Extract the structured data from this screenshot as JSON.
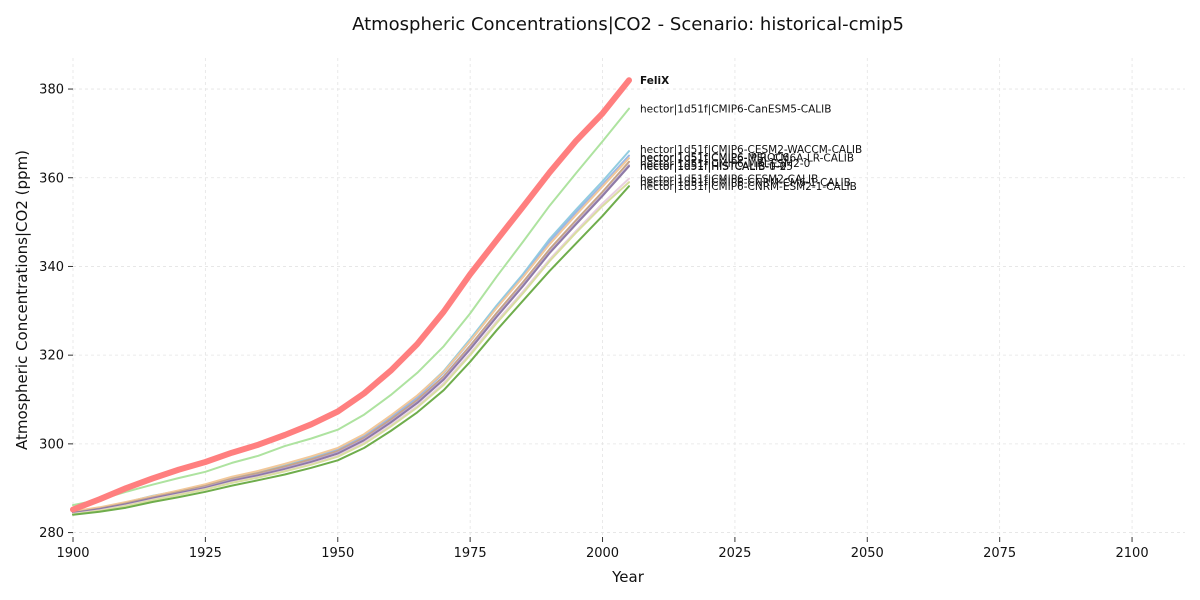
{
  "chart_data": {
    "type": "line",
    "title": "Atmospheric Concentrations|CO2 - Scenario: historical-cmip5",
    "xlabel": "Year",
    "ylabel": "Atmospheric Concentrations|CO2 (ppm)",
    "xlim": [
      1900,
      2110
    ],
    "ylim": [
      279,
      387
    ],
    "xticks": [
      1900,
      1925,
      1950,
      1975,
      2000,
      2025,
      2050,
      2075,
      2100
    ],
    "yticks": [
      280,
      300,
      320,
      340,
      360,
      380
    ],
    "grid": true,
    "legend": "end-of-line labels",
    "x": [
      1900,
      1905,
      1910,
      1915,
      1920,
      1925,
      1930,
      1935,
      1940,
      1945,
      1950,
      1955,
      1960,
      1965,
      1970,
      1975,
      1980,
      1985,
      1990,
      1995,
      2000,
      2005
    ],
    "series": [
      {
        "name": "FeliX",
        "color": "#ff7f7f",
        "width": 6,
        "bold": true,
        "values": [
          285.2,
          287.5,
          290.0,
          292.2,
          294.2,
          295.9,
          298.0,
          299.8,
          302.0,
          304.4,
          307.3,
          311.4,
          316.5,
          322.5,
          329.8,
          338.2,
          345.9,
          353.5,
          361.2,
          368.3,
          374.5,
          382.0
        ]
      },
      {
        "name": "hector|1d51f|CMIP6-CanESM5-CALIB",
        "color": "#aee3a0",
        "width": 2,
        "values": [
          286.2,
          287.4,
          289.2,
          290.8,
          292.3,
          293.7,
          295.7,
          297.3,
          299.5,
          301.2,
          303.2,
          306.6,
          311.0,
          316.0,
          322.0,
          329.4,
          337.7,
          345.6,
          353.7,
          361.0,
          368.2,
          375.6
        ]
      },
      {
        "name": "hector|1d51f|CMIP6-CESM2-WACCM-CALIB",
        "color": "#92cce0",
        "width": 2,
        "values": [
          284.7,
          285.6,
          286.8,
          288.3,
          289.4,
          290.7,
          292.4,
          293.6,
          295.1,
          296.8,
          298.8,
          302.0,
          306.2,
          310.8,
          316.4,
          323.6,
          331.2,
          338.3,
          346.2,
          352.8,
          359.2,
          366.0
        ]
      },
      {
        "name": "hector|1d51f|CMIP6-IPSL-CM6A-LR-CALIB",
        "color": "#9bb7e6",
        "width": 2,
        "values": [
          284.6,
          285.5,
          286.7,
          288.1,
          289.2,
          290.5,
          292.2,
          293.4,
          294.9,
          296.6,
          298.6,
          301.7,
          305.9,
          310.4,
          316.0,
          323.1,
          330.7,
          337.8,
          345.6,
          352.2,
          358.5,
          365.0
        ]
      },
      {
        "name": "hector|1d51f|CMIP6-MIROC6",
        "color": "#f2c89a",
        "width": 2,
        "values": [
          284.8,
          285.7,
          286.9,
          288.2,
          289.5,
          290.9,
          292.6,
          293.9,
          295.5,
          297.2,
          299.1,
          302.2,
          306.4,
          310.9,
          316.2,
          323.2,
          330.6,
          337.6,
          345.0,
          351.6,
          358.0,
          364.4
        ]
      },
      {
        "name": "hector|1d51f|CMIP6-MRI-ESM2-0",
        "color": "#c4a48a",
        "width": 2,
        "values": [
          284.5,
          285.4,
          286.6,
          287.9,
          289.2,
          290.5,
          292.1,
          293.4,
          294.9,
          296.5,
          298.4,
          301.4,
          305.5,
          309.9,
          315.2,
          322.1,
          329.5,
          336.5,
          343.9,
          350.4,
          356.8,
          363.6
        ]
      },
      {
        "name": "hector|1d51f|HISTCALIB-1-0",
        "color": "#b9a6d6",
        "width": 2,
        "values": [
          284.3,
          285.2,
          286.3,
          287.7,
          288.9,
          290.2,
          291.8,
          293.0,
          294.5,
          296.1,
          298.0,
          301.0,
          305.0,
          309.4,
          314.7,
          321.5,
          328.8,
          335.8,
          343.2,
          349.7,
          356.1,
          362.8
        ]
      },
      {
        "name": "hector|1d51f|HISTCALIB-0-25",
        "color": "#8e7aa6",
        "width": 2,
        "values": [
          284.4,
          285.3,
          286.4,
          287.7,
          288.9,
          290.1,
          291.7,
          292.9,
          294.3,
          295.9,
          297.8,
          300.8,
          304.8,
          309.2,
          314.5,
          321.3,
          328.6,
          335.6,
          343.0,
          349.5,
          355.9,
          362.6
        ]
      },
      {
        "name": "hector|1d51f|CMIP6-CESM2-CALIB",
        "color": "#e8cfe0",
        "width": 2,
        "values": [
          284.2,
          285.0,
          286.1,
          287.4,
          288.6,
          289.8,
          291.3,
          292.5,
          293.9,
          295.5,
          297.3,
          300.3,
          304.2,
          308.5,
          313.7,
          320.4,
          327.6,
          334.4,
          341.6,
          348.0,
          354.2,
          359.8
        ]
      },
      {
        "name": "hector|1d51f|CMIP6-CNRM-CM6-1-CALIB",
        "color": "#d9dea0",
        "width": 2,
        "values": [
          284.1,
          284.9,
          286.0,
          287.3,
          288.5,
          289.7,
          291.2,
          292.4,
          293.8,
          295.3,
          297.1,
          300.0,
          303.9,
          308.2,
          313.3,
          320.0,
          327.2,
          334.0,
          341.2,
          347.6,
          353.6,
          359.0
        ]
      },
      {
        "name": "hector|1d51f|CMIP6-CNRM-ESM2-1-CALIB",
        "color": "#6fad4c",
        "width": 2,
        "values": [
          284.0,
          284.7,
          285.6,
          286.9,
          288.0,
          289.2,
          290.6,
          291.8,
          293.1,
          294.6,
          296.3,
          299.1,
          302.9,
          307.1,
          312.1,
          318.5,
          325.6,
          332.3,
          339.0,
          345.2,
          351.4,
          358.1
        ]
      }
    ],
    "label_offsets_y": [
      0,
      0,
      -2,
      2,
      -1,
      1,
      0,
      0,
      0,
      0,
      0
    ]
  }
}
